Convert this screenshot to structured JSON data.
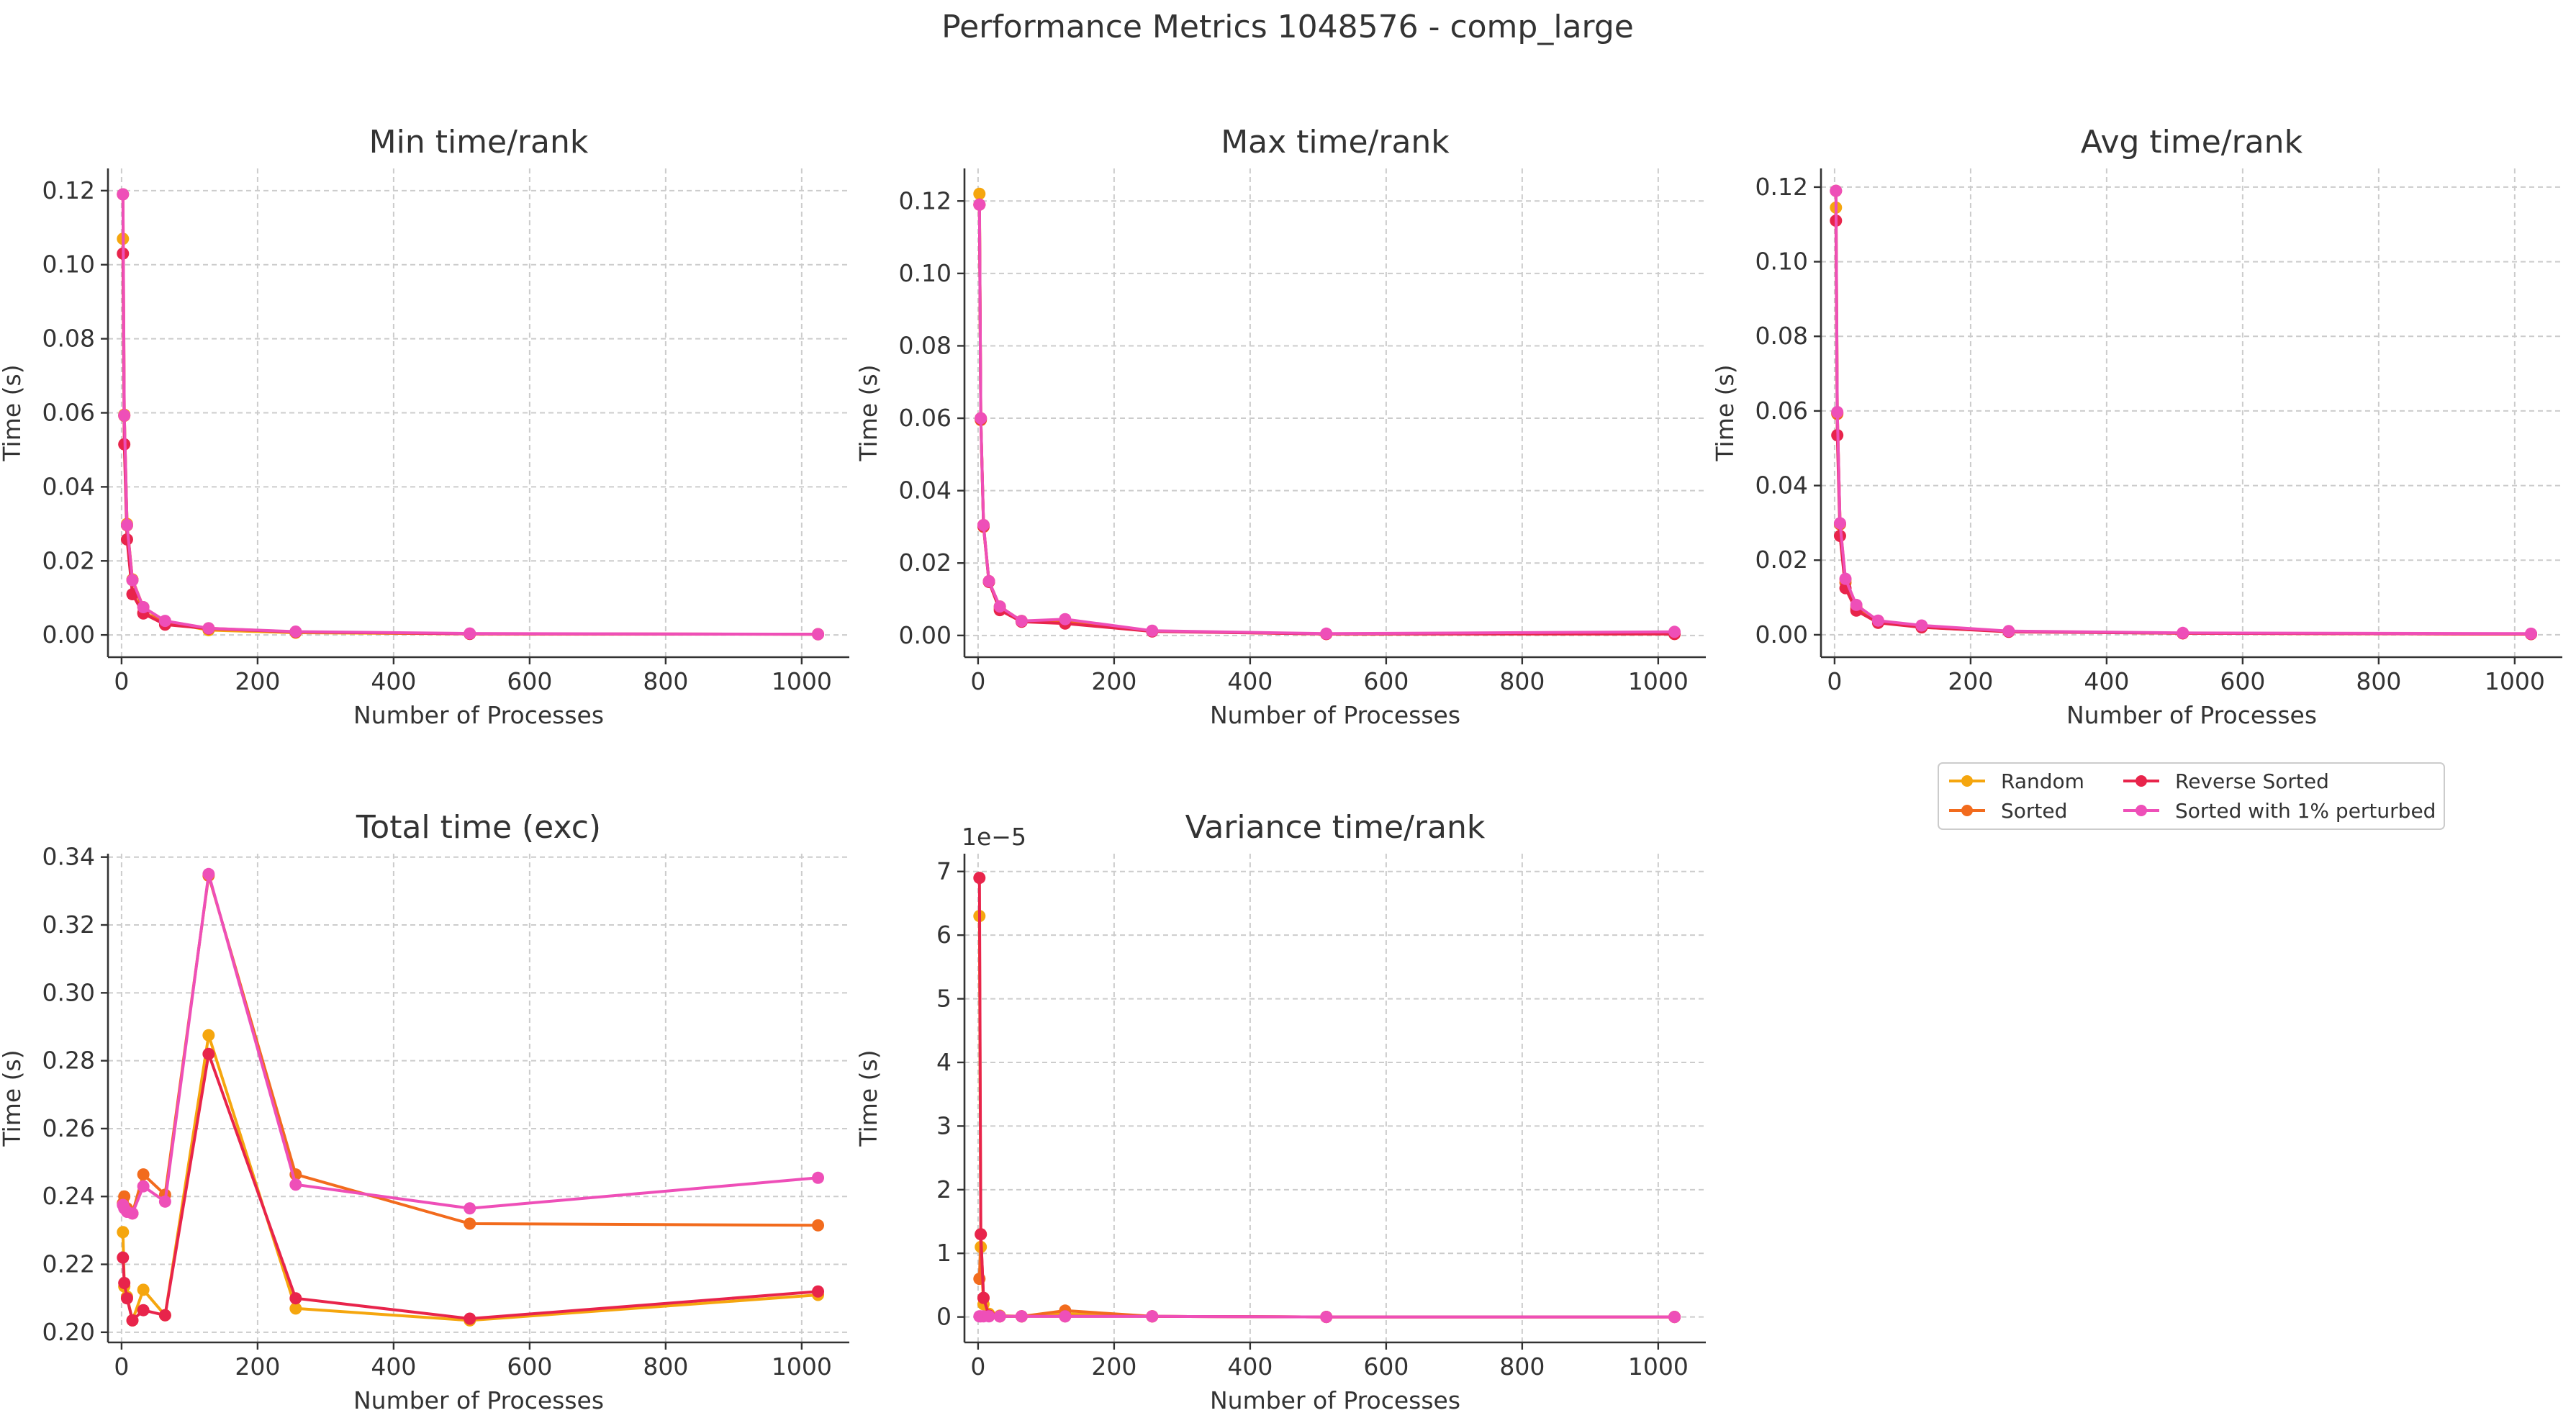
{
  "figure": {
    "title": "Performance Metrics 1048576 - comp_large"
  },
  "colors": {
    "Random": "#f5a60e",
    "Sorted": "#f26b1d",
    "Reverse Sorted": "#e8244b",
    "Sorted with 1% perturbed": "#ee4fb8"
  },
  "legend": {
    "entries": [
      "Random",
      "Sorted",
      "Reverse Sorted",
      "Sorted with 1% perturbed"
    ]
  },
  "chart_data": [
    {
      "type": "line",
      "title": "Min time/rank",
      "xlabel": "Number of Processes",
      "ylabel": "Time (s)",
      "xlim": [
        -20,
        1070
      ],
      "ylim": [
        -0.006,
        0.126
      ],
      "xticks": [
        0,
        200,
        400,
        600,
        800,
        1000
      ],
      "xtick_labels": [
        "0",
        "200",
        "400",
        "600",
        "800",
        "1000"
      ],
      "yticks": [
        0,
        0.02,
        0.04,
        0.06,
        0.08,
        0.1,
        0.12
      ],
      "ytick_labels": [
        "0.00",
        "0.02",
        "0.04",
        "0.06",
        "0.08",
        "0.10",
        "0.12"
      ],
      "offset_text": "",
      "grid": true,
      "x": [
        2,
        4,
        8,
        16,
        32,
        64,
        128,
        256,
        512,
        1024
      ],
      "series": [
        {
          "name": "Random",
          "values": [
            0.107,
            0.0595,
            0.03,
            0.015,
            0.0075,
            0.0035,
            0.0013,
            0.0006,
            0.0003,
            0.0002
          ]
        },
        {
          "name": "Sorted",
          "values": [
            0.119,
            0.0592,
            0.0296,
            0.0148,
            0.006,
            0.0035,
            0.0018,
            0.0008,
            0.0003,
            0.0002
          ]
        },
        {
          "name": "Reverse Sorted",
          "values": [
            0.103,
            0.0515,
            0.0258,
            0.011,
            0.0058,
            0.0028,
            0.0017,
            0.0008,
            0.0003,
            0.0002
          ]
        },
        {
          "name": "Sorted with 1% perturbed",
          "values": [
            0.119,
            0.0593,
            0.0297,
            0.0148,
            0.0075,
            0.0038,
            0.0018,
            0.0009,
            0.0004,
            0.0002
          ]
        }
      ]
    },
    {
      "type": "line",
      "title": "Max time/rank",
      "xlabel": "Number of Processes",
      "ylabel": "Time (s)",
      "xlim": [
        -20,
        1070
      ],
      "ylim": [
        -0.006,
        0.129
      ],
      "xticks": [
        0,
        200,
        400,
        600,
        800,
        1000
      ],
      "xtick_labels": [
        "0",
        "200",
        "400",
        "600",
        "800",
        "1000"
      ],
      "yticks": [
        0,
        0.02,
        0.04,
        0.06,
        0.08,
        0.1,
        0.12
      ],
      "ytick_labels": [
        "0.00",
        "0.02",
        "0.04",
        "0.06",
        "0.08",
        "0.10",
        "0.12"
      ],
      "offset_text": "",
      "grid": true,
      "x": [
        2,
        4,
        8,
        16,
        32,
        64,
        128,
        256,
        512,
        1024
      ],
      "series": [
        {
          "name": "Random",
          "values": [
            0.122,
            0.06,
            0.0305,
            0.015,
            0.008,
            0.004,
            0.004,
            0.0012,
            0.0004,
            0.0006
          ]
        },
        {
          "name": "Sorted",
          "values": [
            0.119,
            0.0595,
            0.03,
            0.0148,
            0.0075,
            0.004,
            0.0038,
            0.0012,
            0.0004,
            0.0004
          ]
        },
        {
          "name": "Reverse Sorted",
          "values": [
            0.119,
            0.0598,
            0.0302,
            0.0148,
            0.007,
            0.0038,
            0.0033,
            0.0011,
            0.0004,
            0.0004
          ]
        },
        {
          "name": "Sorted with 1% perturbed",
          "values": [
            0.119,
            0.06,
            0.0305,
            0.015,
            0.008,
            0.004,
            0.0045,
            0.0013,
            0.0005,
            0.001
          ]
        }
      ]
    },
    {
      "type": "line",
      "title": "Avg time/rank",
      "xlabel": "Number of Processes",
      "ylabel": "Time (s)",
      "xlim": [
        -20,
        1070
      ],
      "ylim": [
        -0.006,
        0.125
      ],
      "xticks": [
        0,
        200,
        400,
        600,
        800,
        1000
      ],
      "xtick_labels": [
        "0",
        "200",
        "400",
        "600",
        "800",
        "1000"
      ],
      "yticks": [
        0,
        0.02,
        0.04,
        0.06,
        0.08,
        0.1,
        0.12
      ],
      "ytick_labels": [
        "0.00",
        "0.02",
        "0.04",
        "0.06",
        "0.08",
        "0.10",
        "0.12"
      ],
      "offset_text": "",
      "grid": true,
      "x": [
        2,
        4,
        8,
        16,
        32,
        64,
        128,
        256,
        512,
        1024
      ],
      "series": [
        {
          "name": "Random",
          "values": [
            0.1145,
            0.0595,
            0.0298,
            0.0148,
            0.0075,
            0.0037,
            0.002,
            0.0009,
            0.0004,
            0.0002
          ]
        },
        {
          "name": "Sorted",
          "values": [
            0.119,
            0.0592,
            0.0296,
            0.014,
            0.007,
            0.0035,
            0.0022,
            0.0009,
            0.0004,
            0.0002
          ]
        },
        {
          "name": "Reverse Sorted",
          "values": [
            0.111,
            0.0535,
            0.0265,
            0.0125,
            0.0065,
            0.0032,
            0.002,
            0.0008,
            0.0004,
            0.0002
          ]
        },
        {
          "name": "Sorted with 1% perturbed",
          "values": [
            0.119,
            0.0597,
            0.0299,
            0.015,
            0.008,
            0.0038,
            0.0025,
            0.001,
            0.0005,
            0.0003
          ]
        }
      ]
    },
    {
      "type": "line",
      "title": "Total time (exc)",
      "xlabel": "Number of Processes",
      "ylabel": "Time (s)",
      "xlim": [
        -20,
        1070
      ],
      "ylim": [
        0.197,
        0.341
      ],
      "xticks": [
        0,
        200,
        400,
        600,
        800,
        1000
      ],
      "xtick_labels": [
        "0",
        "200",
        "400",
        "600",
        "800",
        "1000"
      ],
      "yticks": [
        0.2,
        0.22,
        0.24,
        0.26,
        0.28,
        0.3,
        0.32,
        0.34
      ],
      "ytick_labels": [
        "0.20",
        "0.22",
        "0.24",
        "0.26",
        "0.28",
        "0.30",
        "0.32",
        "0.34"
      ],
      "offset_text": "",
      "grid": true,
      "x": [
        2,
        4,
        8,
        16,
        32,
        64,
        128,
        256,
        512,
        1024
      ],
      "series": [
        {
          "name": "Random",
          "values": [
            0.2295,
            0.2135,
            0.2105,
            0.2035,
            0.2125,
            0.205,
            0.2875,
            0.207,
            0.2035,
            0.211
          ]
        },
        {
          "name": "Sorted",
          "values": [
            0.238,
            0.24,
            0.2365,
            0.235,
            0.2465,
            0.2405,
            0.3345,
            0.2465,
            0.232,
            0.2315
          ]
        },
        {
          "name": "Reverse Sorted",
          "values": [
            0.222,
            0.2145,
            0.21,
            0.2035,
            0.2065,
            0.205,
            0.282,
            0.21,
            0.204,
            0.212
          ]
        },
        {
          "name": "Sorted with 1% perturbed",
          "values": [
            0.2375,
            0.2365,
            0.2355,
            0.235,
            0.243,
            0.2385,
            0.335,
            0.2435,
            0.2365,
            0.2455
          ]
        }
      ]
    },
    {
      "type": "line",
      "title": "Variance time/rank",
      "xlabel": "Number of Processes",
      "ylabel": "Time (s)",
      "xlim": [
        -20,
        1070
      ],
      "ylim": [
        -4e-06,
        7.28e-05
      ],
      "xticks": [
        0,
        200,
        400,
        600,
        800,
        1000
      ],
      "xtick_labels": [
        "0",
        "200",
        "400",
        "600",
        "800",
        "1000"
      ],
      "yticks": [
        0,
        1e-05,
        2e-05,
        3e-05,
        4e-05,
        5e-05,
        6e-05,
        7e-05
      ],
      "ytick_labels": [
        "0",
        "1",
        "2",
        "3",
        "4",
        "5",
        "6",
        "7"
      ],
      "offset_text": "1e−5",
      "grid": true,
      "x": [
        2,
        4,
        8,
        16,
        32,
        64,
        128,
        256,
        512,
        1024
      ],
      "series": [
        {
          "name": "Random",
          "values": [
            6.3e-05,
            1.1e-05,
            2e-06,
            5e-07,
            2e-07,
            1e-07,
            5e-07,
            1e-07,
            0.0,
            0.0
          ]
        },
        {
          "name": "Sorted",
          "values": [
            6e-06,
            1.3e-05,
            3e-06,
            2e-07,
            1e-07,
            1e-07,
            1e-06,
            1e-07,
            0.0,
            0.0
          ]
        },
        {
          "name": "Reverse Sorted",
          "values": [
            6.9e-05,
            1.3e-05,
            3e-06,
            2e-07,
            1e-07,
            1e-07,
            1e-07,
            1e-07,
            0.0,
            0.0
          ]
        },
        {
          "name": "Sorted with 1% perturbed",
          "values": [
            1e-07,
            1e-07,
            1e-07,
            1e-07,
            1e-07,
            1e-07,
            1e-07,
            1e-07,
            0.0,
            0.0
          ]
        }
      ]
    }
  ]
}
